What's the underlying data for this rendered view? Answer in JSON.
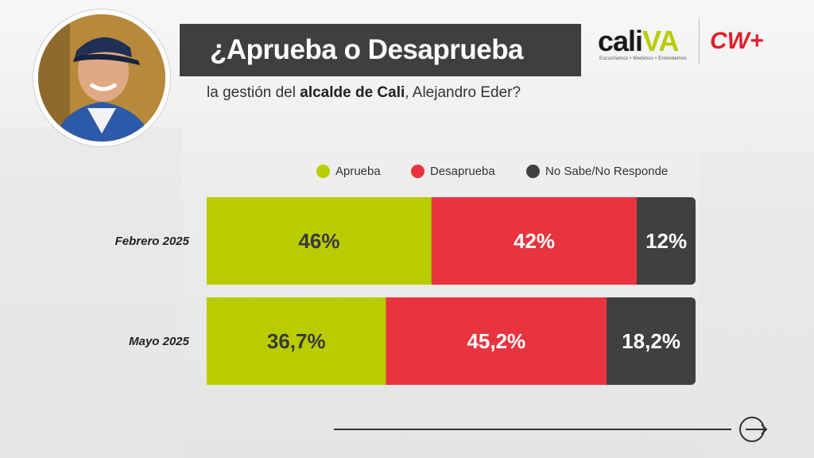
{
  "header": {
    "title": "¿Aprueba o Desaprueba",
    "subtitle_pre": "la gestión del ",
    "subtitle_bold": "alcalde de Cali",
    "subtitle_post": ", Alejandro Eder?"
  },
  "brand": {
    "cali_text": "cali",
    "cali_va": "VA",
    "cali_tagline": "Escuchamos • Medimos • Entendemos",
    "cw_text": "CW+"
  },
  "colors": {
    "aprueba": "#b8cc00",
    "desaprueba": "#e8343f",
    "nsnr": "#404040"
  },
  "chart_data": {
    "type": "bar",
    "orientation": "horizontal",
    "stacked": true,
    "normalized": true,
    "title": "¿Aprueba o Desaprueba",
    "categories": [
      "Febrero 2025",
      "Mayo 2025"
    ],
    "series": [
      {
        "name": "Aprueba",
        "values": [
          46,
          36.7
        ],
        "labels": [
          "46%",
          "36,7%"
        ],
        "color": "#b8cc00"
      },
      {
        "name": "Desaprueba",
        "values": [
          42,
          45.2
        ],
        "labels": [
          "42%",
          "45,2%"
        ],
        "color": "#e8343f"
      },
      {
        "name": "No Sabe/No Responde",
        "values": [
          12,
          18.2
        ],
        "labels": [
          "12%",
          "18,2%"
        ],
        "color": "#404040"
      }
    ],
    "legend": "top",
    "grid": false
  }
}
